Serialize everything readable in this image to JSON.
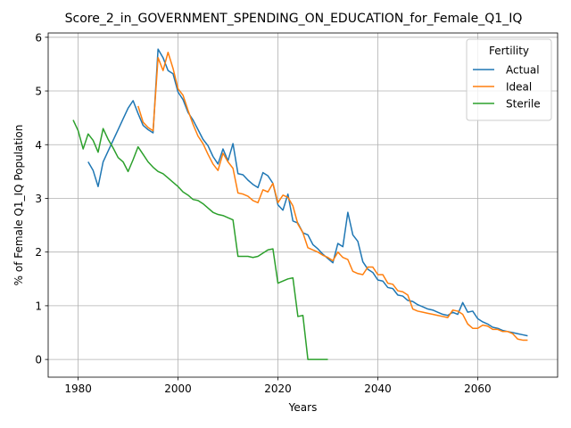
{
  "chart_data": {
    "type": "line",
    "title": "Score_2_in_GOVERNMENT_SPENDING_ON_EDUCATION_for_Female_Q1_IQ",
    "xlabel": "Years",
    "ylabel": "% of Female Q1_IQ Population",
    "xlim": [
      1974,
      2076
    ],
    "ylim": [
      -0.33,
      6.08
    ],
    "xticks": [
      1980,
      2000,
      2020,
      2040,
      2060
    ],
    "yticks": [
      0,
      1,
      2,
      3,
      4,
      5,
      6
    ],
    "grid": true,
    "legend": {
      "title": "Fertility",
      "placement": "top-right"
    },
    "series": [
      {
        "name": "Actual",
        "color": "#1f77b4",
        "x": [
          1982,
          1983,
          1984,
          1985,
          1986,
          1987,
          1988,
          1989,
          1990,
          1991,
          1992,
          1993,
          1994,
          1995,
          1996,
          1997,
          1998,
          1999,
          2000,
          2001,
          2002,
          2003,
          2004,
          2005,
          2006,
          2007,
          2008,
          2009,
          2010,
          2011,
          2012,
          2013,
          2014,
          2015,
          2016,
          2017,
          2018,
          2019,
          2020,
          2021,
          2022,
          2023,
          2024,
          2025,
          2026,
          2027,
          2028,
          2029,
          2030,
          2031,
          2032,
          2033,
          2034,
          2035,
          2036,
          2037,
          2038,
          2039,
          2040,
          2041,
          2042,
          2043,
          2044,
          2045,
          2046,
          2047,
          2048,
          2049,
          2050,
          2051,
          2052,
          2053,
          2054,
          2055,
          2056,
          2057,
          2058,
          2059,
          2060,
          2061,
          2062,
          2063,
          2064,
          2065,
          2066,
          2067,
          2068,
          2069,
          2070
        ],
        "y": [
          3.68,
          3.52,
          3.22,
          3.68,
          3.88,
          4.08,
          4.28,
          4.48,
          4.68,
          4.82,
          4.58,
          4.36,
          4.28,
          4.22,
          5.78,
          5.62,
          5.38,
          5.32,
          4.98,
          4.84,
          4.6,
          4.46,
          4.28,
          4.1,
          3.98,
          3.78,
          3.64,
          3.92,
          3.7,
          4.02,
          3.46,
          3.44,
          3.34,
          3.26,
          3.2,
          3.48,
          3.42,
          3.28,
          2.88,
          2.78,
          3.08,
          2.58,
          2.54,
          2.36,
          2.32,
          2.14,
          2.06,
          1.96,
          1.88,
          1.8,
          2.16,
          2.1,
          2.74,
          2.32,
          2.2,
          1.82,
          1.68,
          1.62,
          1.48,
          1.46,
          1.34,
          1.32,
          1.2,
          1.18,
          1.1,
          1.08,
          1.02,
          0.98,
          0.94,
          0.92,
          0.88,
          0.84,
          0.82,
          0.88,
          0.84,
          1.06,
          0.88,
          0.9,
          0.76,
          0.7,
          0.66,
          0.6,
          0.58,
          0.54,
          0.52,
          0.5,
          0.48,
          0.46,
          0.44
        ]
      },
      {
        "name": "Ideal",
        "color": "#ff7f0e",
        "x": [
          1992,
          1993,
          1994,
          1995,
          1996,
          1997,
          1998,
          1999,
          2000,
          2001,
          2002,
          2003,
          2004,
          2005,
          2006,
          2007,
          2008,
          2009,
          2010,
          2011,
          2012,
          2013,
          2014,
          2015,
          2016,
          2017,
          2018,
          2019,
          2020,
          2021,
          2022,
          2023,
          2024,
          2025,
          2026,
          2027,
          2028,
          2029,
          2030,
          2031,
          2032,
          2033,
          2034,
          2035,
          2036,
          2037,
          2038,
          2039,
          2040,
          2041,
          2042,
          2043,
          2044,
          2045,
          2046,
          2047,
          2048,
          2049,
          2050,
          2051,
          2052,
          2053,
          2054,
          2055,
          2056,
          2057,
          2058,
          2059,
          2060,
          2061,
          2062,
          2063,
          2064,
          2065,
          2066,
          2067,
          2068,
          2069,
          2070
        ],
        "y": [
          4.72,
          4.42,
          4.32,
          4.26,
          5.62,
          5.38,
          5.72,
          5.42,
          5.04,
          4.92,
          4.64,
          4.38,
          4.16,
          4.02,
          3.82,
          3.64,
          3.52,
          3.84,
          3.68,
          3.56,
          3.1,
          3.08,
          3.04,
          2.96,
          2.92,
          3.16,
          3.12,
          3.28,
          2.92,
          3.06,
          3.02,
          2.86,
          2.52,
          2.36,
          2.08,
          2.04,
          2.0,
          1.94,
          1.9,
          1.84,
          2.0,
          1.9,
          1.86,
          1.64,
          1.6,
          1.58,
          1.72,
          1.72,
          1.58,
          1.58,
          1.42,
          1.4,
          1.28,
          1.26,
          1.2,
          0.94,
          0.9,
          0.88,
          0.86,
          0.84,
          0.82,
          0.8,
          0.78,
          0.92,
          0.9,
          0.84,
          0.66,
          0.58,
          0.58,
          0.64,
          0.62,
          0.56,
          0.56,
          0.52,
          0.52,
          0.48,
          0.38,
          0.36,
          0.36
        ]
      },
      {
        "name": "Sterile",
        "color": "#2ca02c",
        "x": [
          1979,
          1980,
          1981,
          1982,
          1983,
          1984,
          1985,
          1986,
          1987,
          1988,
          1989,
          1990,
          1991,
          1992,
          1993,
          1994,
          1995,
          1996,
          1997,
          1998,
          1999,
          2000,
          2001,
          2002,
          2003,
          2004,
          2005,
          2006,
          2007,
          2008,
          2009,
          2010,
          2011,
          2012,
          2013,
          2014,
          2015,
          2016,
          2017,
          2018,
          2019,
          2020,
          2021,
          2022,
          2023,
          2024,
          2025,
          2026,
          2027,
          2028,
          2029,
          2030
        ],
        "y": [
          4.46,
          4.26,
          3.92,
          4.2,
          4.08,
          3.86,
          4.3,
          4.1,
          3.94,
          3.76,
          3.68,
          3.5,
          3.72,
          3.96,
          3.82,
          3.68,
          3.58,
          3.5,
          3.46,
          3.38,
          3.3,
          3.22,
          3.12,
          3.06,
          2.98,
          2.96,
          2.9,
          2.82,
          2.74,
          2.7,
          2.68,
          2.64,
          2.6,
          1.92,
          1.92,
          1.92,
          1.9,
          1.92,
          1.98,
          2.04,
          2.06,
          1.42,
          1.46,
          1.5,
          1.52,
          0.8,
          0.82,
          0.0,
          0.0,
          0.0,
          0.0,
          0.0
        ]
      }
    ]
  }
}
